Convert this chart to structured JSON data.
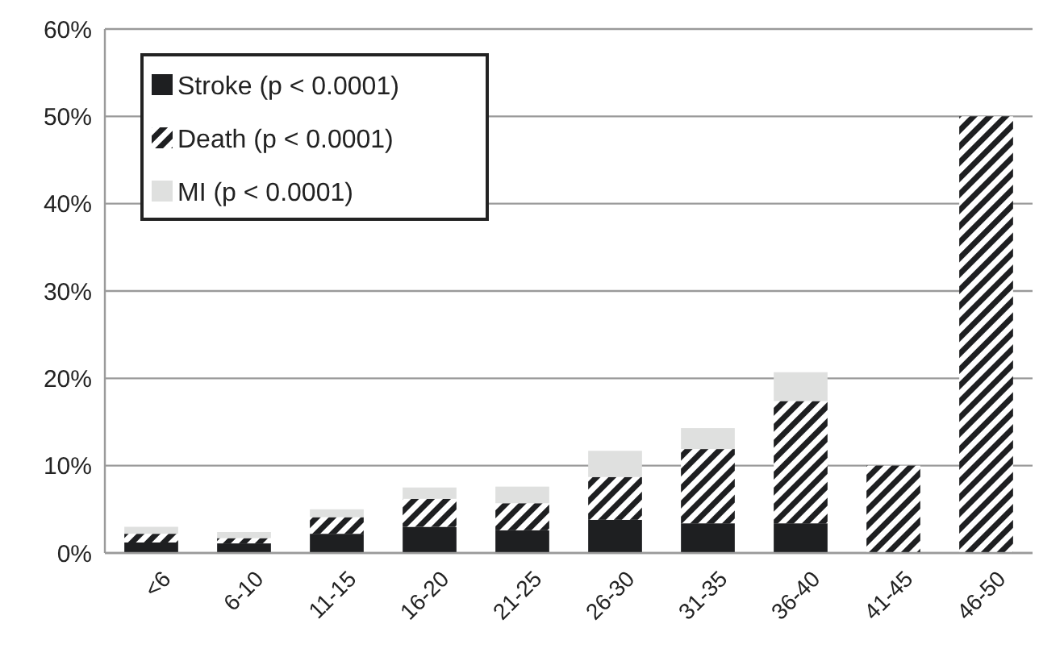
{
  "chart_data": {
    "type": "bar",
    "stacked": true,
    "categories": [
      "<6",
      "6-10",
      "11-15",
      "16-20",
      "21-25",
      "26-30",
      "31-35",
      "36-40",
      "41-45",
      "46-50"
    ],
    "series": [
      {
        "name": "Stroke (p < 0.0001)",
        "color": "#1e1f21",
        "values": [
          1.2,
          1.1,
          2.2,
          3.0,
          2.6,
          3.8,
          3.4,
          3.4,
          0,
          0
        ]
      },
      {
        "name": "Death (p < 0.0001)",
        "color": "#1e1f21",
        "values": [
          1.0,
          0.6,
          1.9,
          3.2,
          3.1,
          4.9,
          8.5,
          14.0,
          10.0,
          50.0
        ]
      },
      {
        "name": "MI (p < 0.0001)",
        "color": "#dfe0df",
        "values": [
          0.8,
          0.7,
          0.9,
          1.3,
          1.9,
          3.0,
          2.4,
          3.3,
          0,
          0
        ]
      }
    ],
    "ylim": [
      0,
      60
    ],
    "yticks": [
      {
        "value": 0,
        "label": "0%"
      },
      {
        "value": 10,
        "label": "10%"
      },
      {
        "value": 20,
        "label": "20%"
      },
      {
        "value": 30,
        "label": "30%"
      },
      {
        "value": 40,
        "label": "40%"
      },
      {
        "value": 50,
        "label": "50%"
      },
      {
        "value": 60,
        "label": "60%"
      }
    ],
    "grid": "y",
    "legend": "top left"
  }
}
